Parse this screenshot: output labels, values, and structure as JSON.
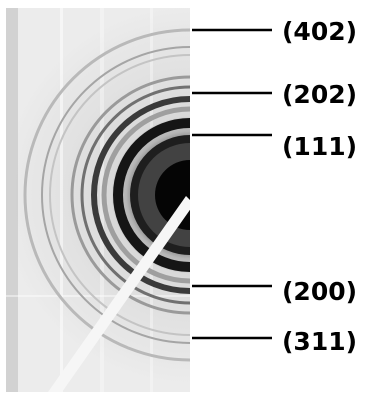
{
  "image": {
    "description_icon": "electron-diffraction-ring-pattern",
    "colors": {
      "background": "#ffffff",
      "film": "#e9e9e9",
      "center_spot": "#050505",
      "label_text": "#000000",
      "beam_stop": "#f6f6f6"
    }
  },
  "labels": [
    {
      "id": "402",
      "text": "(402)"
    },
    {
      "id": "202",
      "text": "(202)"
    },
    {
      "id": "111",
      "text": "(111)"
    },
    {
      "id": "200",
      "text": "(200)"
    },
    {
      "id": "311",
      "text": "(311)"
    }
  ]
}
